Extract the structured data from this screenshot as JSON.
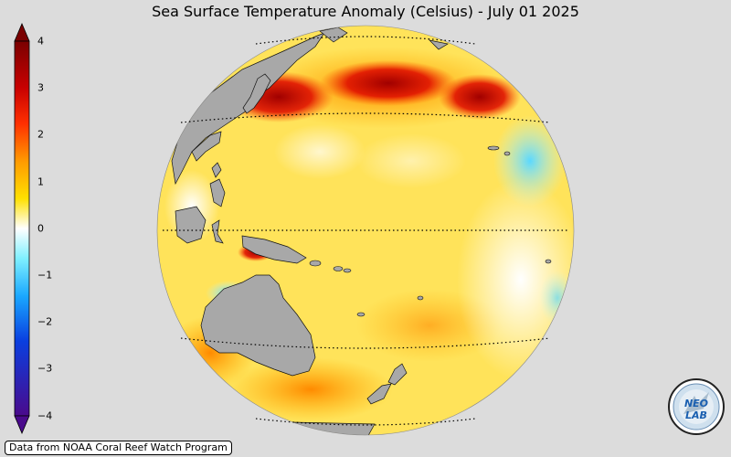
{
  "title": "Sea Surface Temperature Anomaly (Celsius) - July 01 2025",
  "colorbar": {
    "ticks": [
      "4",
      "3",
      "2",
      "1",
      "0",
      "−1",
      "−2",
      "−3",
      "−4"
    ],
    "colors": [
      "#4a0a8c",
      "#0a2fd6",
      "#1aa0ff",
      "#7ff0ff",
      "#ffffff",
      "#ffff33",
      "#ffb000",
      "#ff3000",
      "#b00000",
      "#6e0000"
    ]
  },
  "map": {
    "ocean_warm": "#ffe35a",
    "land_color": "#a8a8a8"
  },
  "credit": "Data from NOAA Coral Reef Watch Program",
  "logo": {
    "text": "NEO LAB"
  }
}
